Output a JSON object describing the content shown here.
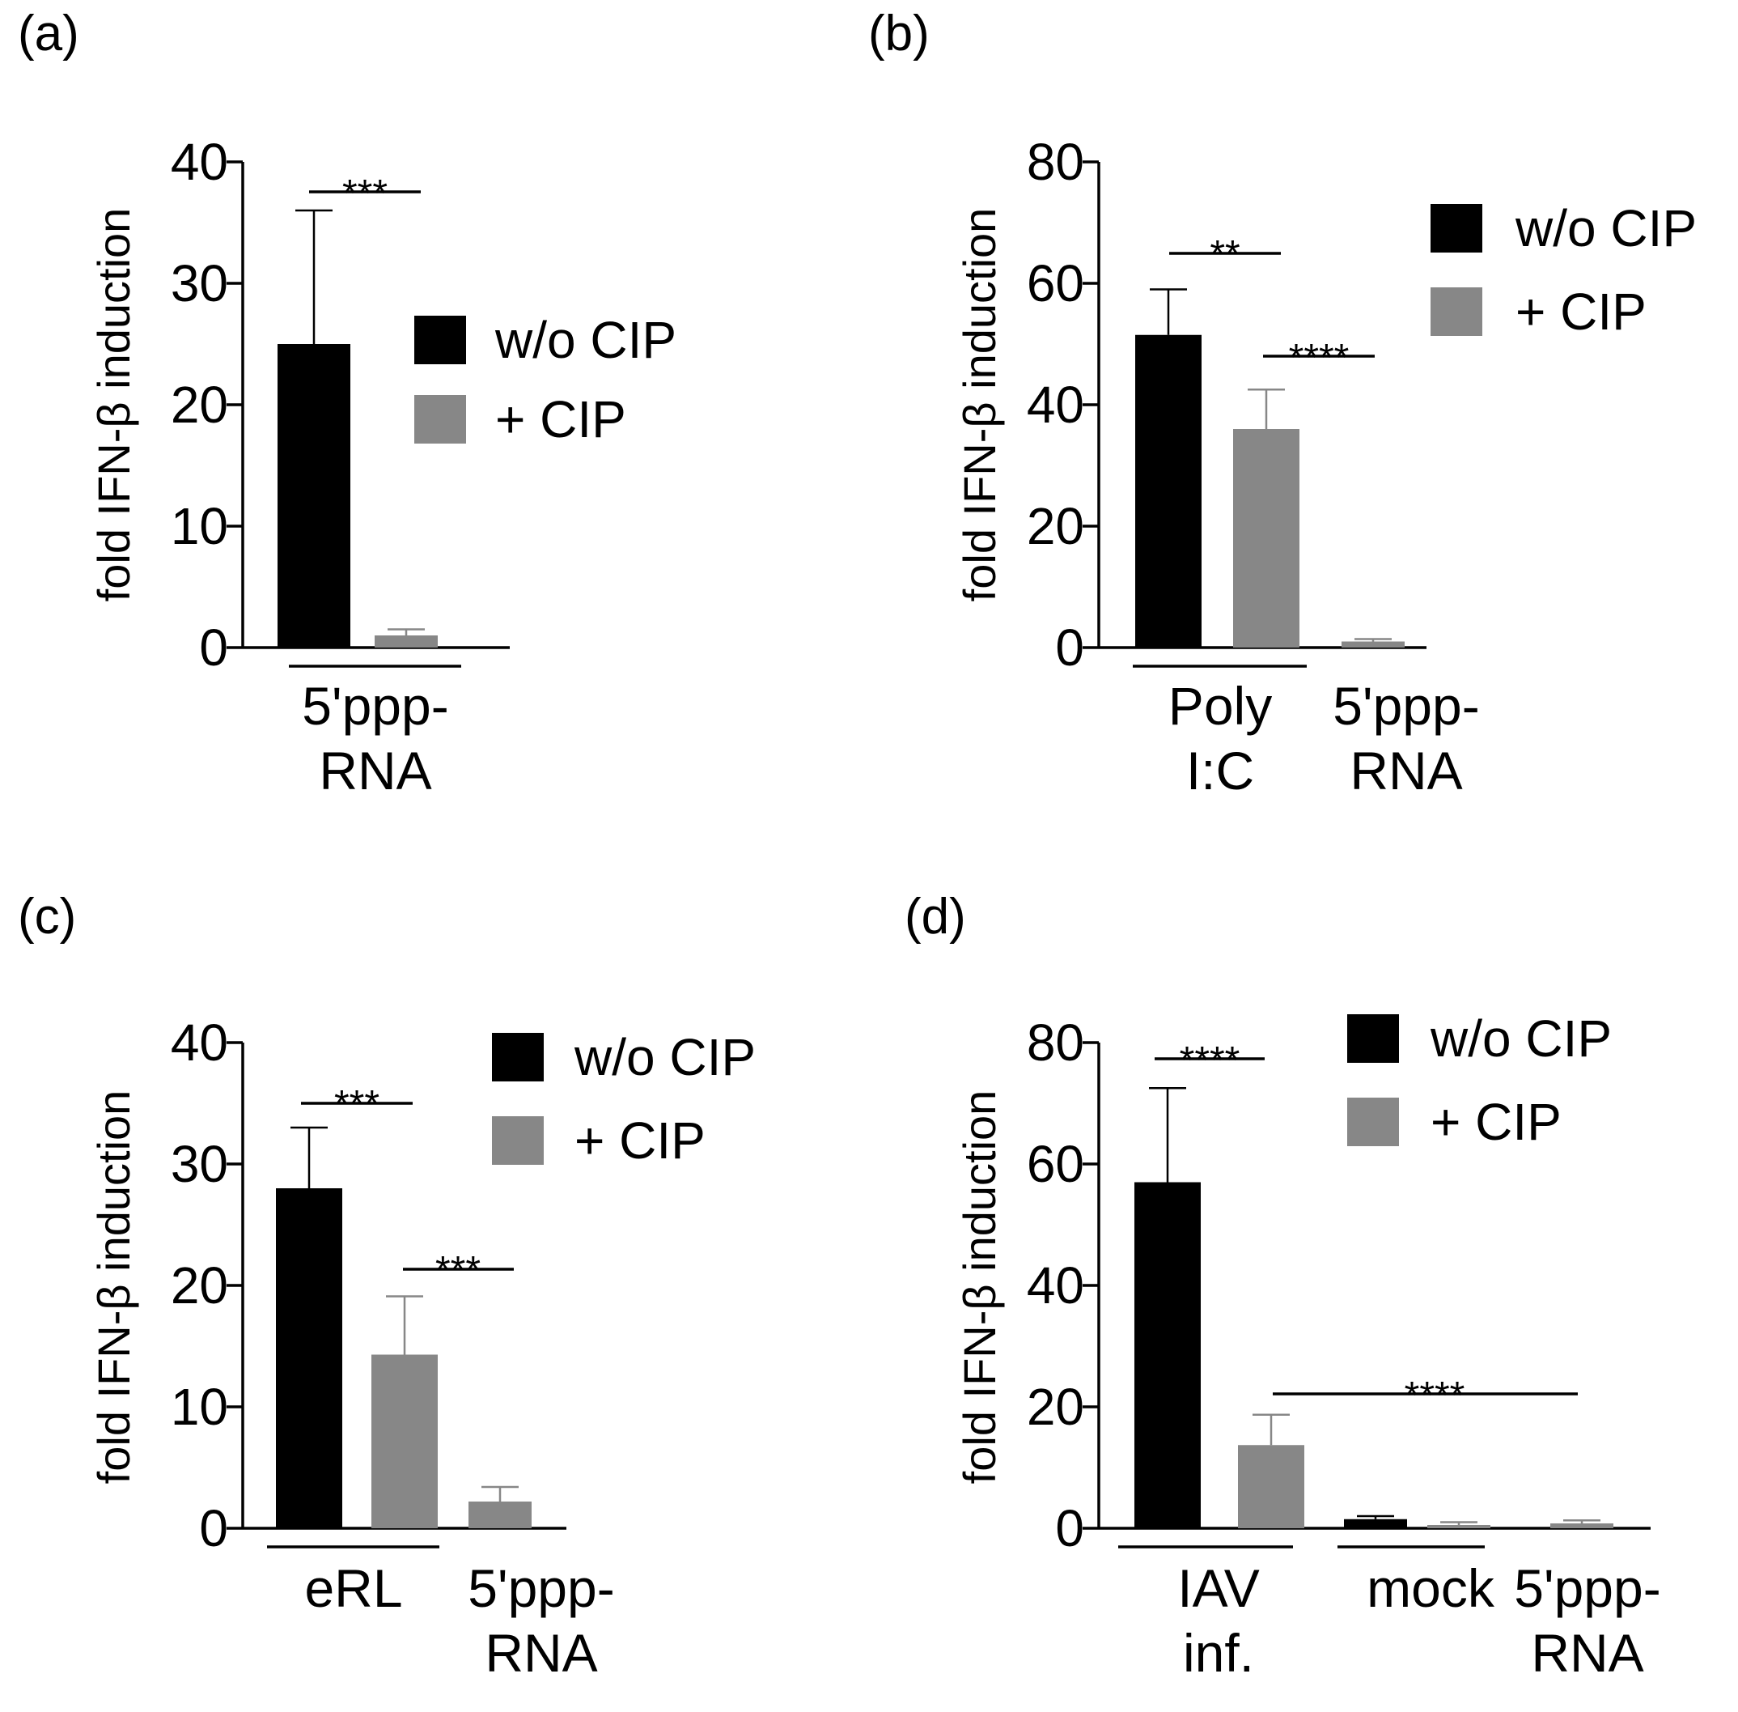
{
  "colors": {
    "black_series": "#000000",
    "gray_series": "#878787",
    "axis": "#000000"
  },
  "chart_data": [
    {
      "panel_label": "(a)",
      "type": "bar",
      "ylabel": "fold IFN-β induction",
      "ylim": [
        0,
        40
      ],
      "yticks": [
        "0",
        "10",
        "20",
        "30",
        "40"
      ],
      "legend": [
        "w/o CIP",
        "+ CIP"
      ],
      "bars": [
        {
          "series": "w/o CIP",
          "value": 25,
          "error": 11
        },
        {
          "series": "+ CIP",
          "value": 1,
          "error": 0.5
        }
      ],
      "groups": [
        {
          "label": [
            "5'ppp-",
            "RNA"
          ]
        }
      ],
      "significance": [
        {
          "label": "***"
        }
      ]
    },
    {
      "panel_label": "(b)",
      "type": "bar",
      "ylabel": "fold IFN-β induction",
      "ylim": [
        0,
        80
      ],
      "yticks": [
        "0",
        "20",
        "40",
        "60",
        "80"
      ],
      "legend": [
        "w/o CIP",
        "+ CIP"
      ],
      "bars": [
        {
          "series": "w/o CIP",
          "value": 51.5,
          "error": 7.5
        },
        {
          "series": "+ CIP",
          "value": 36,
          "error": 6.5
        },
        {
          "series": "+ CIP",
          "value": 1,
          "error": 0.4
        }
      ],
      "groups": [
        {
          "label": [
            "Poly",
            "I:C"
          ]
        },
        {
          "label": [
            "5'ppp-",
            "RNA"
          ]
        }
      ],
      "significance": [
        {
          "label": "**"
        },
        {
          "label": "****"
        }
      ]
    },
    {
      "panel_label": "(c)",
      "type": "bar",
      "ylabel": "fold IFN-β induction",
      "ylim": [
        0,
        40
      ],
      "yticks": [
        "0",
        "10",
        "20",
        "30",
        "40"
      ],
      "legend": [
        "w/o CIP",
        "+ CIP"
      ],
      "bars": [
        {
          "series": "w/o CIP",
          "value": 28,
          "error": 5
        },
        {
          "series": "+ CIP",
          "value": 14.3,
          "error": 4.8
        },
        {
          "series": "+ CIP",
          "value": 2.2,
          "error": 1.2
        }
      ],
      "groups": [
        {
          "label": [
            "eRL"
          ]
        },
        {
          "label": [
            "5'ppp-",
            "RNA"
          ]
        }
      ],
      "significance": [
        {
          "label": "***"
        },
        {
          "label": "***"
        }
      ]
    },
    {
      "panel_label": "(d)",
      "type": "bar",
      "ylabel": "fold IFN-β induction",
      "ylim": [
        0,
        80
      ],
      "yticks": [
        "0",
        "20",
        "40",
        "60",
        "80"
      ],
      "legend": [
        "w/o CIP",
        "+ CIP"
      ],
      "bars": [
        {
          "series": "w/o CIP",
          "value": 57,
          "error": 15.5
        },
        {
          "series": "+ CIP",
          "value": 13.7,
          "error": 5
        },
        {
          "series": "w/o CIP",
          "value": 1.5,
          "error": 0.5
        },
        {
          "series": "+ CIP",
          "value": 0.5,
          "error": 0.5
        },
        {
          "series": "+ CIP",
          "value": 0.8,
          "error": 0.5
        }
      ],
      "groups": [
        {
          "label": [
            "IAV",
            "inf."
          ]
        },
        {
          "label": [
            "mock"
          ]
        },
        {
          "label": [
            "5'ppp-",
            "RNA"
          ]
        }
      ],
      "significance": [
        {
          "label": "****"
        },
        {
          "label": "****"
        }
      ]
    }
  ]
}
